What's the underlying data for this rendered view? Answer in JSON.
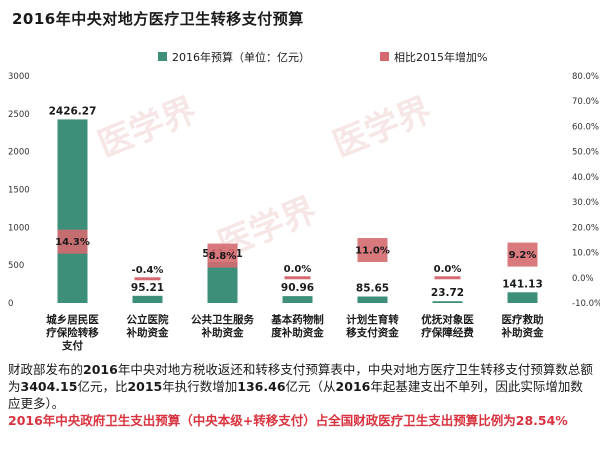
{
  "title": "2016年中央对地方医疗卫生转移支付预算",
  "watermark_text": "医学界",
  "colors": {
    "bar": "#3e8f7a",
    "pct_box": "#d46a70",
    "text": "#1a1a1a",
    "highlight": "#d9333f",
    "watermark": "#e8b8b8"
  },
  "chart_data": {
    "type": "bar",
    "categories": [
      [
        "城乡居民医",
        "疗保险转移",
        "支付"
      ],
      [
        "公立医院",
        "补助资金"
      ],
      [
        "公共卫生服务",
        "补助资金"
      ],
      [
        "基本药物制",
        "度补助资金"
      ],
      [
        "计划生育转",
        "移支付资金"
      ],
      [
        "优抚对象医",
        "疗保障经费"
      ],
      [
        "医疗救助",
        "补助资金"
      ]
    ],
    "series": [
      {
        "name": "2016年预算（单位：亿元）",
        "axis": "left",
        "values": [
          2426.27,
          95.21,
          541.21,
          90.96,
          85.65,
          23.72,
          141.13
        ],
        "labels": [
          "2426.27",
          "95.21",
          "541.21",
          "90.96",
          "85.65",
          "23.72",
          "141.13"
        ]
      },
      {
        "name": "相比2015年增加%",
        "axis": "right",
        "values": [
          14.3,
          -0.4,
          8.8,
          0.0,
          11.0,
          0.0,
          9.2
        ],
        "labels": [
          "14.3%",
          "-0.4%",
          "8.8%",
          "0.0%",
          "11.0%",
          "0.0%",
          "9.2%"
        ]
      }
    ],
    "y_left": {
      "ticks": [
        "0",
        "500",
        "1000",
        "1500",
        "2000",
        "2500",
        "3000"
      ],
      "range": [
        0,
        3000
      ]
    },
    "y_right": {
      "ticks": [
        "-10.0%",
        "0.0%",
        "10.0%",
        "20.0%",
        "30.0%",
        "40.0%",
        "50.0%",
        "60.0%",
        "70.0%",
        "80.0%"
      ],
      "range": [
        -10,
        80
      ]
    },
    "legend_position": "top"
  },
  "body_text": {
    "p1": "财政部发布的",
    "p2": "2016",
    "p3": "年中央对地方税收返还和转移支付预算表中，中央对地方医疗卫生转移支付预算数总额为",
    "p4": "3404.15",
    "p5": "亿元，比",
    "p6": "2015",
    "p7": "年执行数增加",
    "p8": "136.46",
    "p9": "亿元（从",
    "p10": "2016",
    "p11": "年起基建支出不单列，因此实际增加数应更多）。"
  },
  "highlight_text": "2016年中央政府卫生支出预算（中央本级+转移支付）占全国财政医疗卫生支出预算比例为28.54%"
}
